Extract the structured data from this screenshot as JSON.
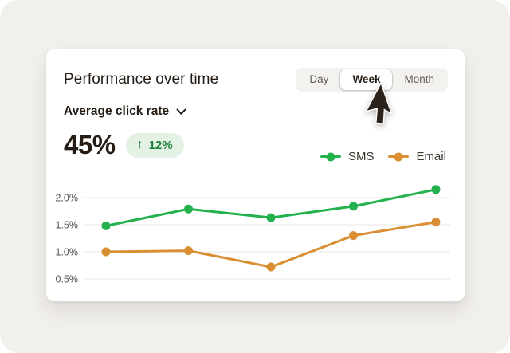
{
  "header": {
    "title": "Performance over time"
  },
  "time_toggle": {
    "options": [
      "Day",
      "Week",
      "Month"
    ],
    "selected": "Week"
  },
  "metric": {
    "dropdown_label": "Average click rate",
    "value": "45%",
    "delta": "12%",
    "delta_arrow": "↑",
    "delta_direction": "up",
    "badge_bg": "#e4f2e6",
    "badge_text_color": "#1e7e3c"
  },
  "legend": {
    "items": [
      {
        "label": "SMS",
        "color": "#22b14c"
      },
      {
        "label": "Email",
        "color": "#d98e32"
      }
    ]
  },
  "chart_data": {
    "type": "line",
    "title": "Performance over time",
    "x": [
      1,
      2,
      3,
      4,
      5
    ],
    "x_tick_labels_visible": false,
    "series": [
      {
        "name": "SMS",
        "color": "#22b14c",
        "values": [
          1.48,
          1.79,
          1.63,
          1.84,
          2.15
        ]
      },
      {
        "name": "Email",
        "color": "#d98e32",
        "values": [
          1.0,
          1.02,
          0.72,
          1.3,
          1.55
        ]
      }
    ],
    "yticks": [
      {
        "label": "2.0%",
        "value": 2.0
      },
      {
        "label": "1.5%",
        "value": 1.5
      },
      {
        "label": "1.0%",
        "value": 1.0
      },
      {
        "label": "0.5%",
        "value": 0.5
      }
    ],
    "ylim": [
      0.33,
      2.25
    ],
    "grid": true,
    "legend_position": "top-right"
  },
  "colors": {
    "page_background": "#f2f0ec",
    "card_background": "#ffffff",
    "text_primary": "#241c15",
    "text_secondary": "#57544e",
    "gridline": "#e9e7e3"
  }
}
